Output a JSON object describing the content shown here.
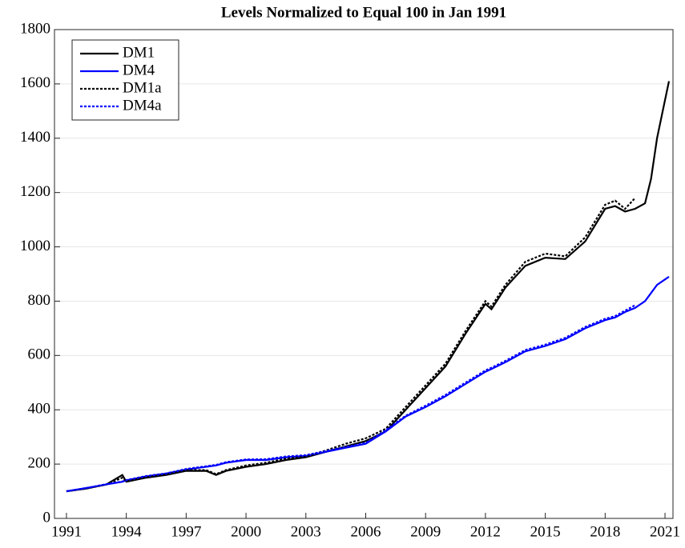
{
  "chart_data": {
    "type": "line",
    "title": "Levels Normalized to Equal 100 in Jan 1991",
    "x": [
      1991,
      1992,
      1993,
      1993.8,
      1994,
      1995,
      1996,
      1997,
      1998,
      1998.5,
      1999,
      2000,
      2001,
      2002,
      2003,
      2004,
      2005,
      2006,
      2007,
      2008,
      2009,
      2010,
      2011,
      2012,
      2012.3,
      2013,
      2014,
      2015,
      2016,
      2017,
      2018,
      2018.5,
      2019,
      2019.5,
      2020,
      2020.3,
      2020.6,
      2021,
      2021.2
    ],
    "series": [
      {
        "name": "DM1",
        "color": "#000000",
        "style": "solid",
        "values": [
          100,
          110,
          125,
          160,
          135,
          150,
          160,
          175,
          175,
          160,
          175,
          190,
          200,
          215,
          225,
          245,
          265,
          285,
          320,
          400,
          480,
          560,
          680,
          790,
          770,
          850,
          930,
          960,
          955,
          1020,
          1140,
          1150,
          1130,
          1140,
          1160,
          1250,
          1400,
          1540,
          1610
        ]
      },
      {
        "name": "DM4",
        "color": "#0000ff",
        "style": "solid",
        "values": [
          100,
          112,
          125,
          135,
          140,
          155,
          165,
          180,
          190,
          195,
          205,
          215,
          215,
          225,
          230,
          245,
          260,
          275,
          320,
          375,
          410,
          450,
          495,
          540,
          550,
          575,
          615,
          635,
          660,
          700,
          730,
          740,
          760,
          775,
          800,
          830,
          860,
          880,
          890
        ]
      },
      {
        "name": "DM1a",
        "color": "#000000",
        "style": "dotted",
        "values": [
          100,
          110,
          125,
          150,
          137,
          152,
          162,
          178,
          178,
          163,
          178,
          195,
          205,
          220,
          228,
          250,
          275,
          295,
          330,
          410,
          490,
          570,
          690,
          800,
          780,
          860,
          945,
          975,
          965,
          1035,
          1155,
          1170,
          1140,
          1180,
          null,
          null,
          null,
          null,
          null
        ]
      },
      {
        "name": "DM4a",
        "color": "#0000ff",
        "style": "dotted",
        "values": [
          100,
          112,
          126,
          136,
          141,
          156,
          166,
          182,
          192,
          197,
          207,
          217,
          218,
          228,
          233,
          248,
          263,
          278,
          325,
          378,
          415,
          455,
          500,
          545,
          555,
          580,
          620,
          640,
          665,
          705,
          735,
          745,
          765,
          785,
          null,
          null,
          null,
          null,
          null
        ]
      }
    ],
    "xlim": [
      1990.4,
      2021.4
    ],
    "xticks": [
      1991,
      1994,
      1997,
      2000,
      2003,
      2006,
      2009,
      2012,
      2015,
      2018,
      2021
    ],
    "ylim": [
      0,
      1800
    ],
    "yticks": [
      0,
      200,
      400,
      600,
      800,
      1000,
      1200,
      1400,
      1600,
      1800
    ],
    "grid": true,
    "legend": "top-left"
  }
}
